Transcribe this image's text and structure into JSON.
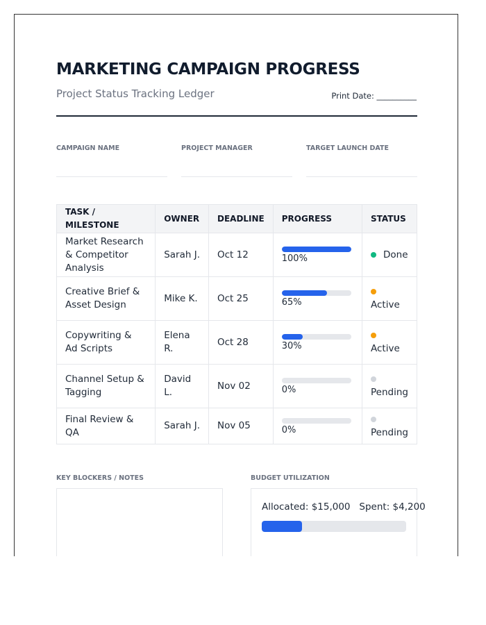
{
  "header": {
    "title": "MARKETING CAMPAIGN PROGRESS",
    "subtitle": "Project Status Tracking Ledger",
    "print_date": "Print Date: __________"
  },
  "fields": [
    "CAMPAIGN NAME",
    "PROJECT MANAGER",
    "TARGET LAUNCH DATE"
  ],
  "table": {
    "columns": [
      "TASK / MILESTONE",
      "OWNER",
      "DEADLINE",
      "PROGRESS",
      "STATUS"
    ],
    "rows": [
      {
        "task": "Market Research & Competitor Analysis",
        "owner": "Sarah J.",
        "deadline": "Oct 12",
        "progress": 100,
        "progress_label": "100%",
        "status": "Done",
        "status_color": "#10b981"
      },
      {
        "task": "Creative Brief & Asset Design",
        "owner": "Mike K.",
        "deadline": "Oct 25",
        "progress": 65,
        "progress_label": "65%",
        "status": "Active",
        "status_color": "#f59e0b"
      },
      {
        "task": "Copywriting & Ad Scripts",
        "owner": "Elena R.",
        "deadline": "Oct 28",
        "progress": 30,
        "progress_label": "30%",
        "status": "Active",
        "status_color": "#f59e0b"
      },
      {
        "task": "Channel Setup & Tagging",
        "owner": "David L.",
        "deadline": "Nov 02",
        "progress": 0,
        "progress_label": "0%",
        "status": "Pending",
        "status_color": "#d1d5db"
      },
      {
        "task": "Final Review & QA",
        "owner": "Sarah J.",
        "deadline": "Nov 05",
        "progress": 0,
        "progress_label": "0%",
        "status": "Pending",
        "status_color": "#d1d5db"
      }
    ]
  },
  "notes": {
    "label": "KEY BLOCKERS / NOTES"
  },
  "budget": {
    "label": "BUDGET UTILIZATION",
    "allocated_label": "Allocated: $15,000",
    "spent_label": "Spent: $4,200",
    "allocated": 15000,
    "spent": 4200
  }
}
